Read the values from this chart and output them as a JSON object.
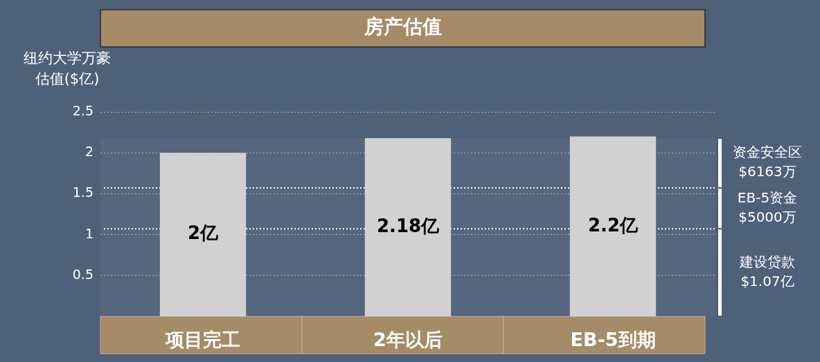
{
  "chart_data": {
    "type": "bar",
    "title": "房产估值",
    "ylabel": "纽约大学万豪估值($亿)",
    "categories": [
      "项目完工",
      "2年以后",
      "EB-5到期"
    ],
    "values": [
      2,
      2.18,
      2.2
    ],
    "color": "#d0d0d0",
    "value_labels": [
      "2亿",
      "2.18亿",
      "2.2亿"
    ],
    "ylim": [
      0,
      2.5
    ],
    "yticks": [
      0.5,
      1,
      1.5,
      2,
      2.5
    ],
    "grid": "y",
    "ref_lines": [
      {
        "axis": "y",
        "value": 1.07,
        "color": "#ffffff",
        "line_style": "dotted"
      },
      {
        "axis": "y",
        "value": 1.57,
        "color": "#ffffff",
        "line_style": "dotted"
      }
    ],
    "bands": [
      {
        "axis": "y",
        "from": 0,
        "to": 1.07,
        "label": "建设贷款\n$1.07亿",
        "color": "#ffffff"
      },
      {
        "axis": "y",
        "from": 1.07,
        "to": 1.57,
        "label": "EB-5资金\n$5000万",
        "color": "#ffffff"
      },
      {
        "axis": "y",
        "from": 1.57,
        "to": 2.18,
        "label": "资金安全区\n$6163万",
        "color": "#ffffff"
      }
    ]
  }
}
